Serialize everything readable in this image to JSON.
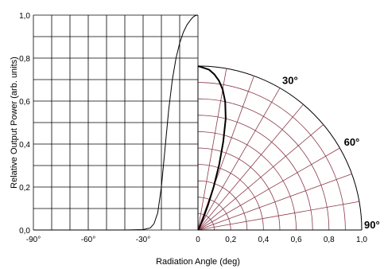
{
  "chart_data": {
    "type": "line",
    "xlabel": "Radiation Angle (deg)",
    "ylabel": "Relative Output Power (arb. units)",
    "xlim": [
      -90,
      0
    ],
    "ylim": [
      0,
      1.0
    ],
    "grid": true,
    "x_tick_labels": [
      "-90°",
      "-60°",
      "-30°",
      "0"
    ],
    "y_tick_labels": [
      "0,0",
      "0,2",
      "0,4",
      "0,6",
      "0,8",
      "1,0"
    ],
    "polar_radius_labels": [
      "0,2",
      "0,4",
      "0,6",
      "0,8",
      "1,0"
    ],
    "polar_angle_labels": [
      "30°",
      "60°",
      "90°"
    ],
    "colors": {
      "cartesian_grid": "#000000",
      "polar_grid": "#8b3a4a",
      "curve": "#000000"
    },
    "series": [
      {
        "x": [
          -90,
          -40,
          -30,
          -26,
          -24,
          -22,
          -20,
          -18,
          -16,
          -14,
          -12,
          -10,
          -8,
          -6,
          -4,
          -3,
          -2,
          -1,
          0
        ],
        "y": [
          0,
          0,
          0.002,
          0.01,
          0.03,
          0.08,
          0.2,
          0.38,
          0.56,
          0.7,
          0.8,
          0.87,
          0.92,
          0.955,
          0.978,
          0.988,
          0.995,
          0.999,
          1.0
        ]
      }
    ],
    "polar_series": [
      {
        "angle_deg": [
          0,
          2,
          4,
          6,
          8,
          10,
          12,
          14,
          16,
          18,
          20,
          22,
          24,
          26,
          28,
          30,
          34,
          40,
          90
        ],
        "r": [
          1.0,
          0.99,
          0.98,
          0.955,
          0.92,
          0.87,
          0.8,
          0.7,
          0.56,
          0.42,
          0.28,
          0.16,
          0.08,
          0.04,
          0.015,
          0.006,
          0.002,
          0.001,
          0
        ]
      }
    ]
  }
}
